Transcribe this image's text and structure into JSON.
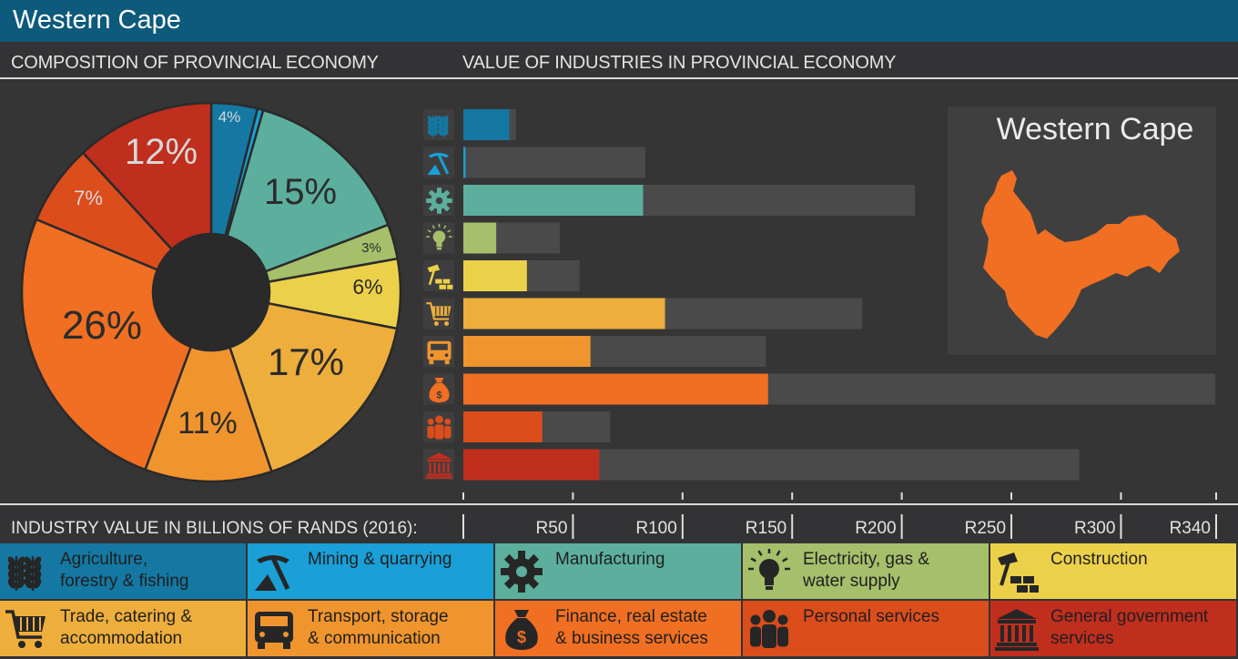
{
  "header": {
    "title": "Western Cape"
  },
  "subheaders": {
    "composition": "COMPOSITION OF PROVINCIAL ECONOMY",
    "value": "VALUE OF INDUSTRIES IN PROVINCIAL ECONOMY"
  },
  "map": {
    "title": "Western Cape"
  },
  "axis": {
    "label": "INDUSTRY VALUE IN BILLIONS OF RANDS (2016):"
  },
  "chart_data": [
    {
      "type": "pie",
      "title": "COMPOSITION OF PROVINCIAL ECONOMY",
      "categories": [
        "Agriculture, forestry & fishing",
        "Mining & quarrying",
        "Manufacturing",
        "Electricity, gas & water supply",
        "Construction",
        "Trade, catering & accommodation",
        "Transport, storage & communication",
        "Finance, real estate & business services",
        "Personal services",
        "General government services"
      ],
      "values": [
        4,
        0,
        15,
        3,
        6,
        17,
        11,
        26,
        7,
        12
      ],
      "labels": [
        "4%",
        "",
        "15%",
        "3%",
        "6%",
        "17%",
        "11%",
        "26%",
        "7%",
        "12%"
      ],
      "colors": [
        "#1478a3",
        "#1a9fd6",
        "#5caf9c",
        "#a6bf6b",
        "#ecd04a",
        "#eeae3c",
        "#f0952e",
        "#f06f22",
        "#dc4d1c",
        "#c02e1e"
      ]
    },
    {
      "type": "bar",
      "title": "VALUE OF INDUSTRIES IN PROVINCIAL ECONOMY",
      "orientation": "horizontal",
      "categories": [
        "Agriculture, forestry & fishing",
        "Mining & quarrying",
        "Manufacturing",
        "Electricity, gas & water supply",
        "Construction",
        "Trade, catering & accommodation",
        "Transport, storage & communication",
        "Finance, real estate & business services",
        "Personal services",
        "General government services"
      ],
      "values": [
        21,
        1,
        82,
        15,
        29,
        92,
        58,
        139,
        36,
        62
      ],
      "track_values": [
        24,
        83,
        206,
        44,
        53,
        182,
        138,
        343,
        67,
        281
      ],
      "colors": [
        "#1478a3",
        "#1a9fd6",
        "#5caf9c",
        "#a6bf6b",
        "#ecd04a",
        "#eeae3c",
        "#f0952e",
        "#f06f22",
        "#dc4d1c",
        "#c02e1e"
      ],
      "xlim": [
        0,
        343
      ],
      "xticks": [
        50,
        100,
        150,
        200,
        250,
        300,
        340
      ],
      "xtick_labels": [
        "R50",
        "R100",
        "R150",
        "R200",
        "R250",
        "R300",
        "R340"
      ],
      "xlabel": "INDUSTRY VALUE IN BILLIONS OF RANDS (2016):"
    }
  ],
  "legend": [
    {
      "label": "Agriculture, forestry & fishing",
      "lines": [
        "Agriculture,",
        "forestry & fishing"
      ],
      "icon": "wheat-icon",
      "color": "#1478a3"
    },
    {
      "label": "Mining & quarrying",
      "lines": [
        "Mining & quarrying"
      ],
      "icon": "pickaxe-icon",
      "color": "#1a9fd6"
    },
    {
      "label": "Manufacturing",
      "lines": [
        "Manufacturing"
      ],
      "icon": "gear-icon",
      "color": "#5caf9c"
    },
    {
      "label": "Electricity, gas & water supply",
      "lines": [
        "Electricity, gas &",
        "water supply"
      ],
      "icon": "lightbulb-icon",
      "color": "#a6bf6b"
    },
    {
      "label": "Construction",
      "lines": [
        "Construction"
      ],
      "icon": "hammer-bricks-icon",
      "color": "#ecd04a"
    },
    {
      "label": "Trade, catering & accommodation",
      "lines": [
        "Trade, catering &",
        "accommodation"
      ],
      "icon": "cart-icon",
      "color": "#eeae3c"
    },
    {
      "label": "Transport, storage & communication",
      "lines": [
        "Transport, storage",
        "& communication"
      ],
      "icon": "truck-icon",
      "color": "#f0952e"
    },
    {
      "label": "Finance, real estate & business services",
      "lines": [
        "Finance, real estate",
        "& business services"
      ],
      "icon": "money-bag-icon",
      "color": "#f06f22"
    },
    {
      "label": "Personal services",
      "lines": [
        "Personal services"
      ],
      "icon": "people-icon",
      "color": "#dc4d1c"
    },
    {
      "label": "General government services",
      "lines": [
        "General government",
        "services"
      ],
      "icon": "government-building-icon",
      "color": "#c02e1e"
    }
  ]
}
